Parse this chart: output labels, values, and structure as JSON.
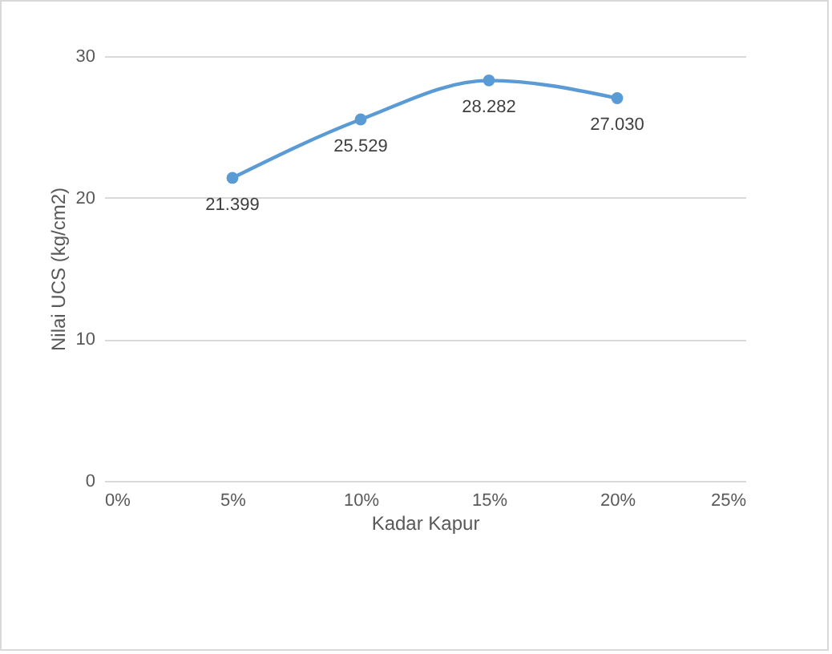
{
  "chart_data": {
    "type": "line",
    "xlabel": "Kadar Kapur",
    "ylabel": "Nilai UCS (kg/cm2)",
    "x": [
      5,
      10,
      15,
      20
    ],
    "series": [
      {
        "color": "#5b9bd5",
        "values": [
          21.399,
          25.529,
          28.282,
          27.03
        ],
        "value_labels": [
          "21.399",
          "25.529",
          "28.282",
          "27.030"
        ]
      }
    ],
    "xlim": [
      0,
      25
    ],
    "xticks": [
      {
        "value": 0,
        "label": "0%"
      },
      {
        "value": 5,
        "label": "5%"
      },
      {
        "value": 10,
        "label": "10%"
      },
      {
        "value": 15,
        "label": "15%"
      },
      {
        "value": 20,
        "label": "20%"
      },
      {
        "value": 25,
        "label": "25%"
      }
    ],
    "ylim": [
      0,
      30
    ],
    "yticks": [
      0,
      10,
      20,
      30
    ],
    "grid": "y",
    "marker": "circle",
    "line_style": "solid"
  }
}
